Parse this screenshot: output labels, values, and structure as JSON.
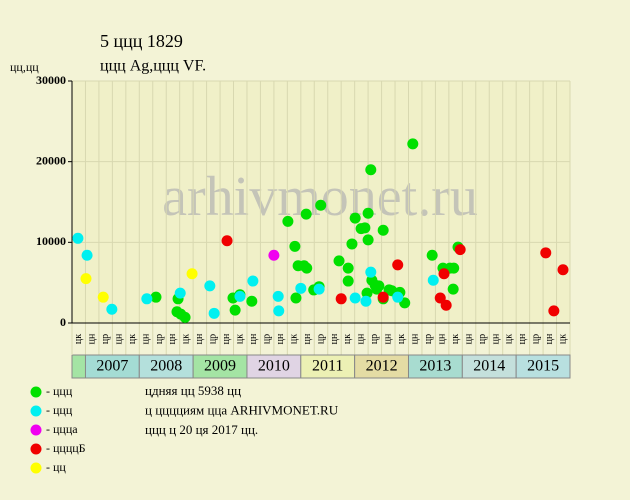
{
  "chart_data": {
    "type": "scatter",
    "title": "5 ццц 1829",
    "subtitle": "ццц Ag,ццц VF.",
    "ylabel": "цц,цц",
    "watermark": "arhivmonet.ru",
    "xlim": [
      2006.75,
      2016.0
    ],
    "ylim": [
      0,
      30000
    ],
    "yticks": [
      0,
      10000,
      20000,
      30000
    ],
    "grid": true,
    "x_quarter_labels": [
      "цк",
      "цн",
      "цр",
      "цн",
      "цк",
      "цн",
      "цр",
      "цн",
      "цк",
      "цн",
      "цр",
      "цн",
      "цк",
      "цн",
      "цр",
      "цн",
      "цк",
      "цн",
      "цр",
      "цн",
      "цк",
      "цн",
      "цр",
      "цн",
      "цк",
      "цн",
      "цр",
      "цн",
      "цк",
      "цн",
      "цр",
      "цн",
      "цк",
      "цн",
      "цр",
      "цн",
      "цк"
    ],
    "years": [
      {
        "label": "2007",
        "color": "#a4dcd4"
      },
      {
        "label": "2008",
        "color": "#b4e0dc"
      },
      {
        "label": "2009",
        "color": "#a4e4a4"
      },
      {
        "label": "2010",
        "color": "#e0d4e4"
      },
      {
        "label": "2011",
        "color": "#ecf0b4"
      },
      {
        "label": "2012",
        "color": "#e4dca4"
      },
      {
        "label": "2013",
        "color": "#a8dcd0"
      },
      {
        "label": "2014",
        "color": "#c4e0dc"
      },
      {
        "label": "2015",
        "color": "#b8e0e0"
      }
    ],
    "series": [
      {
        "name": "- ццц",
        "color": "#00e000",
        "x": [
          2008.31,
          2008.72,
          2008.7,
          2008.77,
          2008.85,
          2009.74,
          2009.78,
          2009.87,
          2010.09,
          2010.76,
          2010.89,
          2010.91,
          2010.95,
          2011.06,
          2011.11,
          2011.1,
          2011.24,
          2011.37,
          2011.34,
          2011.71,
          2011.88,
          2011.88,
          2011.95,
          2012.01,
          2012.12,
          2012.19,
          2012.23,
          2012.25,
          2012.25,
          2012.3,
          2012.32,
          2012.38,
          2012.41,
          2012.45,
          2012.53,
          2012.53,
          2012.64,
          2012.69,
          2012.79,
          2012.84,
          2012.93,
          2013.08,
          2013.44,
          2013.64,
          2013.77,
          2013.83,
          2013.84,
          2013.92
        ],
        "values": [
          3200,
          3000,
          1400,
          1100,
          700,
          3100,
          1600,
          3500,
          2700,
          12600,
          9500,
          3100,
          7100,
          7100,
          6800,
          13500,
          4100,
          14600,
          4500,
          7700,
          5200,
          6800,
          9800,
          13000,
          11700,
          11800,
          3700,
          13600,
          10300,
          19000,
          5300,
          4700,
          4200,
          4600,
          3000,
          11500,
          4100,
          4000,
          3600,
          3800,
          2500,
          22200,
          8400,
          6800,
          6800,
          4200,
          6800,
          9400
        ]
      },
      {
        "name": "- ццц",
        "color": "#00f0f0",
        "x": [
          2006.86,
          2007.03,
          2007.49,
          2008.14,
          2008.76,
          2009.31,
          2009.39,
          2009.87,
          2010.11,
          2010.59,
          2010.58,
          2011.0,
          2011.34,
          2012.01,
          2012.21,
          2012.3,
          2012.8,
          2013.46
        ],
        "values": [
          10500,
          8400,
          1700,
          3000,
          3700,
          4600,
          1200,
          3300,
          5200,
          1500,
          3300,
          4300,
          4200,
          3100,
          2700,
          6300,
          3200,
          5300
        ]
      },
      {
        "name": "- ццца",
        "color": "#f000f0",
        "x": [
          2010.5
        ],
        "values": [
          8400
        ]
      },
      {
        "name": "- ццццБ",
        "color": "#f00000",
        "x": [
          2009.63,
          2011.75,
          2012.53,
          2012.8,
          2013.59,
          2013.66,
          2013.7,
          2013.96,
          2015.55,
          2015.7,
          2015.87
        ],
        "values": [
          10200,
          3000,
          3200,
          7200,
          3100,
          6100,
          2200,
          9100,
          8700,
          1500,
          6600
        ]
      },
      {
        "name": "- цц",
        "color": "#ffff00",
        "x": [
          2007.01,
          2007.33,
          2008.98
        ],
        "values": [
          5500,
          3200,
          6100
        ]
      }
    ],
    "notes": [
      "цдняя цц 5938 цц",
      "ц цццциям цца ARHIVMONET.RU",
      "ццц ц 20 ця 2017 цц."
    ]
  }
}
